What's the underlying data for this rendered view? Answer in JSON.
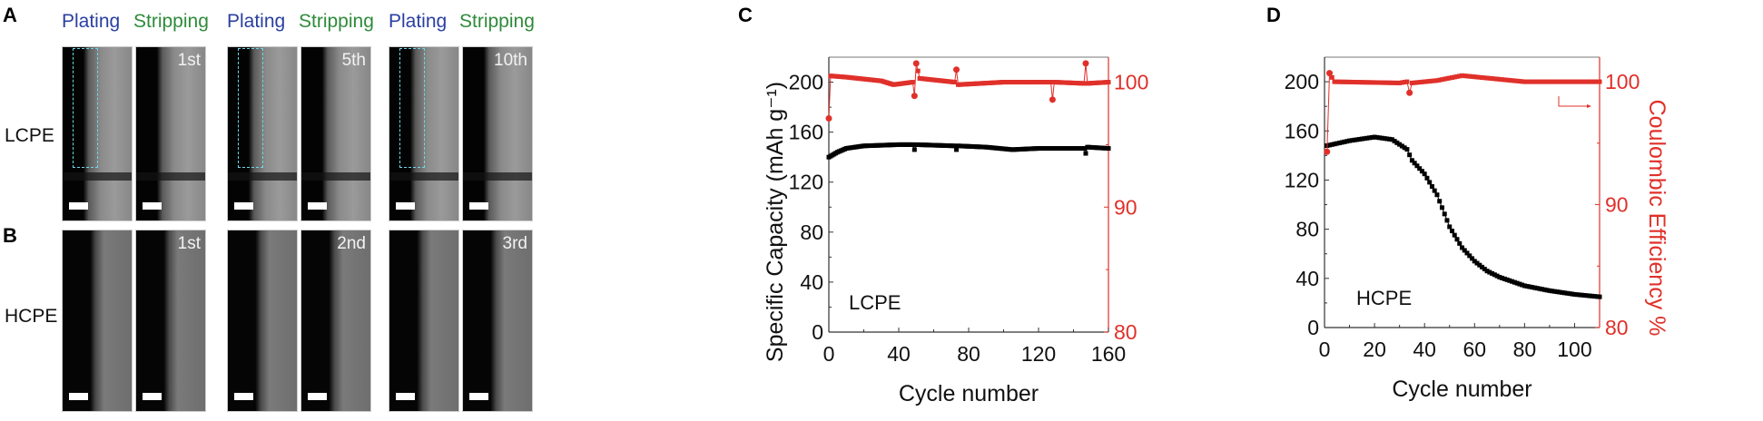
{
  "panels": {
    "A": {
      "letter": "A",
      "row_label": "LCPE",
      "column_headers": [
        "Plating",
        "Stripping",
        "Plating",
        "Stripping",
        "Plating",
        "Stripping"
      ],
      "cycle_labels": [
        "1st",
        "5th",
        "10th"
      ]
    },
    "B": {
      "letter": "B",
      "row_label": "HCPE",
      "cycle_labels": [
        "1st",
        "2nd",
        "3rd"
      ]
    },
    "C": {
      "letter": "C"
    },
    "D": {
      "letter": "D"
    }
  },
  "colors": {
    "plating": "#2a3fa0",
    "stripping": "#2e8b3a",
    "capacity": "#000000",
    "ce": "#e0302a",
    "roi": "#6fd6e6"
  },
  "chart_data": [
    {
      "type": "line",
      "panel": "C",
      "annotation": "LCPE",
      "xlabel": "Cycle number",
      "ylabel": "Specific Capacity (mAh g⁻¹)",
      "y2label": "",
      "xlim": [
        0,
        160
      ],
      "ylim": [
        0,
        220
      ],
      "y2lim": [
        80,
        102
      ],
      "xticks": [
        "0",
        "40",
        "80",
        "120",
        "160"
      ],
      "yticks": [
        "0",
        "40",
        "80",
        "120",
        "160",
        "200"
      ],
      "y2ticks": [
        "80",
        "90",
        "100"
      ],
      "series": [
        {
          "name": "Specific Capacity",
          "axis": "left",
          "color": "#000000",
          "points": [
            [
              0,
              140
            ],
            [
              5,
              144
            ],
            [
              10,
              147
            ],
            [
              20,
              149
            ],
            [
              40,
              150
            ],
            [
              48,
              150
            ],
            [
              49,
              146
            ],
            [
              50,
              150
            ],
            [
              72,
              149
            ],
            [
              73,
              146
            ],
            [
              74,
              149
            ],
            [
              90,
              148
            ],
            [
              105,
              146
            ],
            [
              120,
              147
            ],
            [
              146,
              147
            ],
            [
              147,
              143
            ],
            [
              148,
              148
            ],
            [
              160,
              147
            ]
          ]
        },
        {
          "name": "Coulombic Efficiency",
          "axis": "right",
          "color": "#e0302a",
          "points": [
            [
              0,
              97.1
            ],
            [
              1,
              100.5
            ],
            [
              10,
              100.4
            ],
            [
              30,
              100.1
            ],
            [
              37,
              99.8
            ],
            [
              48,
              100
            ],
            [
              49,
              98.9
            ],
            [
              50,
              101.5
            ],
            [
              52,
              100.3
            ],
            [
              72,
              100
            ],
            [
              73,
              101
            ],
            [
              74,
              99.8
            ],
            [
              100,
              100
            ],
            [
              127,
              100
            ],
            [
              128,
              98.6
            ],
            [
              129,
              100
            ],
            [
              146,
              99.9
            ],
            [
              147,
              101.5
            ],
            [
              148,
              99.9
            ],
            [
              160,
              100
            ]
          ]
        }
      ]
    },
    {
      "type": "line",
      "panel": "D",
      "annotation": "HCPE",
      "xlabel": "Cycle number",
      "ylabel": "",
      "y2label": "Coulombic Efficiency %",
      "xlim": [
        0,
        110
      ],
      "ylim": [
        0,
        220
      ],
      "y2lim": [
        80,
        102
      ],
      "xticks": [
        "0",
        "20",
        "40",
        "60",
        "80",
        "100"
      ],
      "yticks": [
        "0",
        "40",
        "80",
        "120",
        "160",
        "200"
      ],
      "y2ticks": [
        "80",
        "90",
        "100"
      ],
      "series": [
        {
          "name": "Specific Capacity",
          "axis": "left",
          "color": "#000000",
          "points": [
            [
              1,
              148
            ],
            [
              10,
              152
            ],
            [
              20,
              155
            ],
            [
              27,
              153
            ],
            [
              33,
              145
            ],
            [
              35,
              136
            ],
            [
              40,
              125
            ],
            [
              45,
              108
            ],
            [
              50,
              82
            ],
            [
              55,
              65
            ],
            [
              60,
              54
            ],
            [
              65,
              46
            ],
            [
              70,
              41
            ],
            [
              80,
              34
            ],
            [
              90,
              30
            ],
            [
              100,
              27
            ],
            [
              110,
              25
            ]
          ]
        },
        {
          "name": "Coulombic Efficiency",
          "axis": "right",
          "color": "#e0302a",
          "points": [
            [
              1,
              94.3
            ],
            [
              2,
              100.7
            ],
            [
              4,
              100
            ],
            [
              30,
              99.9
            ],
            [
              33,
              100
            ],
            [
              34,
              99.1
            ],
            [
              35,
              99.9
            ],
            [
              45,
              100.1
            ],
            [
              55,
              100.5
            ],
            [
              65,
              100.3
            ],
            [
              80,
              100
            ],
            [
              110,
              100
            ]
          ]
        }
      ]
    }
  ]
}
